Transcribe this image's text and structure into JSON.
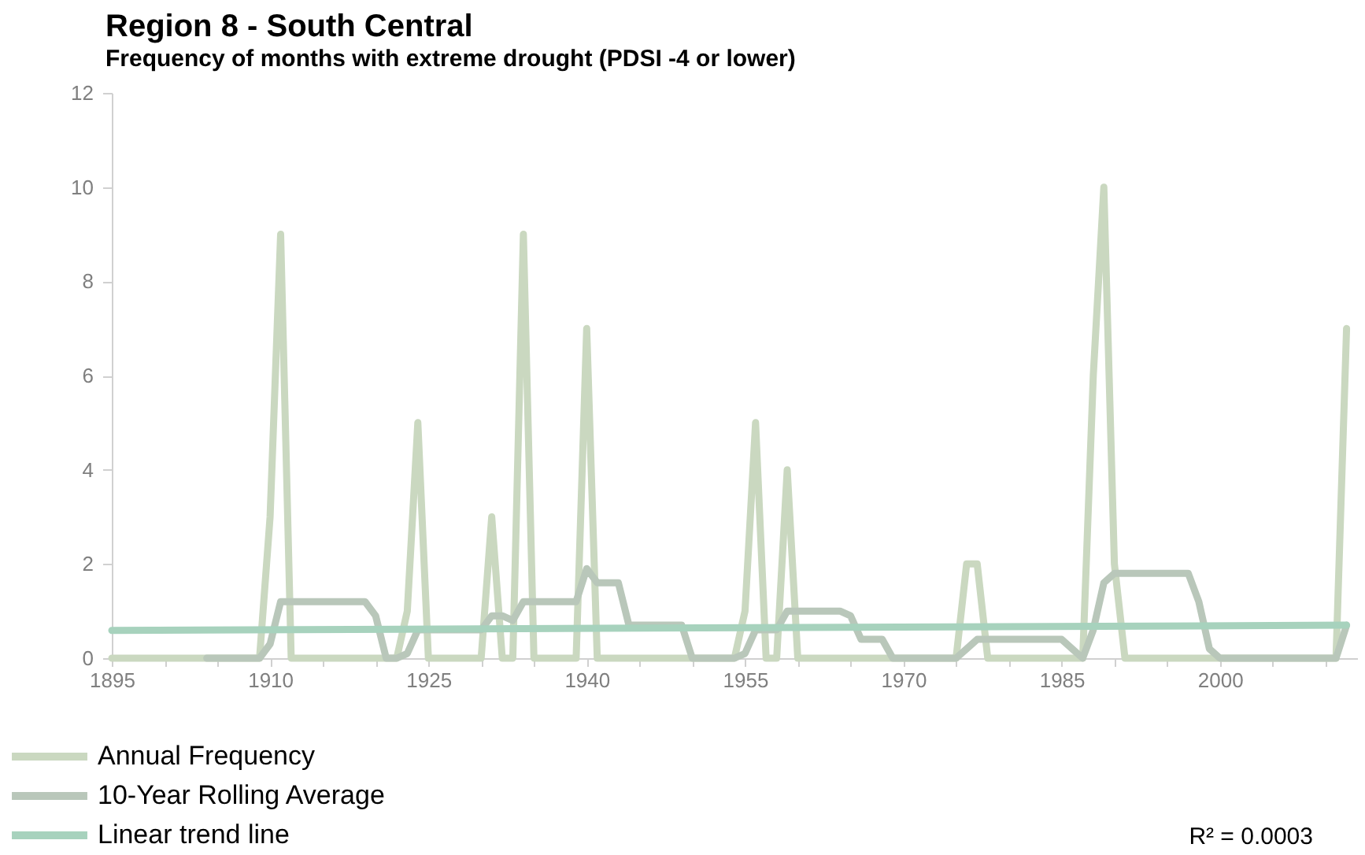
{
  "chart_data": {
    "type": "line",
    "title": "Region 8 - South Central",
    "subtitle": "Frequency of months with extreme drought (PDSI -4 or lower)",
    "x": [
      1895,
      1896,
      1897,
      1898,
      1899,
      1900,
      1901,
      1902,
      1903,
      1904,
      1905,
      1906,
      1907,
      1908,
      1909,
      1910,
      1911,
      1912,
      1913,
      1914,
      1915,
      1916,
      1917,
      1918,
      1919,
      1920,
      1921,
      1922,
      1923,
      1924,
      1925,
      1926,
      1927,
      1928,
      1929,
      1930,
      1931,
      1932,
      1933,
      1934,
      1935,
      1936,
      1937,
      1938,
      1939,
      1940,
      1941,
      1942,
      1943,
      1944,
      1945,
      1946,
      1947,
      1948,
      1949,
      1950,
      1951,
      1952,
      1953,
      1954,
      1955,
      1956,
      1957,
      1958,
      1959,
      1960,
      1961,
      1962,
      1963,
      1964,
      1965,
      1966,
      1967,
      1968,
      1969,
      1970,
      1971,
      1972,
      1973,
      1974,
      1975,
      1976,
      1977,
      1978,
      1979,
      1980,
      1981,
      1982,
      1983,
      1984,
      1985,
      1986,
      1987,
      1988,
      1989,
      1990,
      1991,
      1992,
      1993,
      1994,
      1995,
      1996,
      1997,
      1998,
      1999,
      2000,
      2001,
      2002,
      2003,
      2004,
      2005,
      2006,
      2007,
      2008,
      2009,
      2010,
      2011,
      2012
    ],
    "series": [
      {
        "name": "Annual Frequency",
        "color": "#cad8c0",
        "values": [
          0,
          0,
          0,
          0,
          0,
          0,
          0,
          0,
          0,
          0,
          0,
          0,
          0,
          0,
          0,
          3,
          9,
          0,
          0,
          0,
          0,
          0,
          0,
          0,
          0,
          0,
          0,
          0,
          1,
          5,
          0,
          0,
          0,
          0,
          0,
          0,
          3,
          0,
          0,
          9,
          0,
          0,
          0,
          0,
          0,
          7,
          0,
          0,
          0,
          0,
          0,
          0,
          0,
          0,
          0,
          0,
          0,
          0,
          0,
          0,
          1,
          5,
          0,
          0,
          4,
          0,
          0,
          0,
          0,
          0,
          0,
          0,
          0,
          0,
          0,
          0,
          0,
          0,
          0,
          0,
          0,
          2,
          2,
          0,
          0,
          0,
          0,
          0,
          0,
          0,
          0,
          0,
          0,
          6,
          10,
          2,
          0,
          0,
          0,
          0,
          0,
          0,
          0,
          0,
          0,
          0,
          0,
          0,
          0,
          0,
          0,
          0,
          0,
          0,
          0,
          0,
          0,
          7
        ]
      },
      {
        "name": "10-Year Rolling Average",
        "color": "#b9c7ba",
        "x": [
          1904,
          1905,
          1906,
          1907,
          1908,
          1909,
          1910,
          1911,
          1912,
          1913,
          1914,
          1915,
          1916,
          1917,
          1918,
          1919,
          1920,
          1921,
          1922,
          1923,
          1924,
          1925,
          1926,
          1927,
          1928,
          1929,
          1930,
          1931,
          1932,
          1933,
          1934,
          1935,
          1936,
          1937,
          1938,
          1939,
          1940,
          1941,
          1942,
          1943,
          1944,
          1945,
          1946,
          1947,
          1948,
          1949,
          1950,
          1951,
          1952,
          1953,
          1954,
          1955,
          1956,
          1957,
          1958,
          1959,
          1960,
          1961,
          1962,
          1963,
          1964,
          1965,
          1966,
          1967,
          1968,
          1969,
          1970,
          1971,
          1972,
          1973,
          1974,
          1975,
          1976,
          1977,
          1978,
          1979,
          1980,
          1981,
          1982,
          1983,
          1984,
          1985,
          1986,
          1987,
          1988,
          1989,
          1990,
          1991,
          1992,
          1993,
          1994,
          1995,
          1996,
          1997,
          1998,
          1999,
          2000,
          2001,
          2002,
          2003,
          2004,
          2005,
          2006,
          2007,
          2008,
          2009,
          2010,
          2011,
          2012
        ],
        "values": [
          0,
          0,
          0,
          0,
          0,
          0,
          0.3,
          1.2,
          1.2,
          1.2,
          1.2,
          1.2,
          1.2,
          1.2,
          1.2,
          1.2,
          0.9,
          0,
          0,
          0.1,
          0.6,
          0.6,
          0.6,
          0.6,
          0.6,
          0.6,
          0.6,
          0.9,
          0.9,
          0.8,
          1.2,
          1.2,
          1.2,
          1.2,
          1.2,
          1.2,
          1.9,
          1.6,
          1.6,
          1.6,
          0.7,
          0.7,
          0.7,
          0.7,
          0.7,
          0.7,
          0,
          0,
          0,
          0,
          0,
          0.1,
          0.6,
          0.6,
          0.6,
          1.0,
          1.0,
          1.0,
          1.0,
          1.0,
          1.0,
          0.9,
          0.4,
          0.4,
          0.4,
          0,
          0,
          0,
          0,
          0,
          0,
          0,
          0.2,
          0.4,
          0.4,
          0.4,
          0.4,
          0.4,
          0.4,
          0.4,
          0.4,
          0.4,
          0.2,
          0,
          0.6,
          1.6,
          1.8,
          1.8,
          1.8,
          1.8,
          1.8,
          1.8,
          1.8,
          1.8,
          1.2,
          0.2,
          0,
          0,
          0,
          0,
          0,
          0,
          0,
          0,
          0,
          0,
          0,
          0,
          0.7
        ]
      },
      {
        "name": "Linear trend line",
        "color": "#a7d2bd",
        "x": [
          1895,
          2012
        ],
        "values": [
          0.59,
          0.7
        ]
      }
    ],
    "xlim": [
      1895,
      2013
    ],
    "xticks": [
      1895,
      {
        "value": 1900,
        "label": null
      },
      {
        "value": 1905,
        "label": null
      },
      1910,
      {
        "value": 1915,
        "label": null
      },
      {
        "value": 1920,
        "label": null
      },
      1925,
      {
        "value": 1930,
        "label": null
      },
      {
        "value": 1935,
        "label": null
      },
      1940,
      {
        "value": 1945,
        "label": null
      },
      {
        "value": 1950,
        "label": null
      },
      1955,
      {
        "value": 1960,
        "label": null
      },
      {
        "value": 1965,
        "label": null
      },
      1970,
      {
        "value": 1975,
        "label": null
      },
      {
        "value": 1980,
        "label": null
      },
      1985,
      {
        "value": 1990,
        "label": null
      },
      {
        "value": 1995,
        "label": null
      },
      2000,
      {
        "value": 2005,
        "label": null
      },
      {
        "value": 2010,
        "label": null
      }
    ],
    "ylim": [
      0,
      12
    ],
    "yticks": [
      0,
      2,
      4,
      6,
      8,
      10,
      12
    ],
    "grid": false,
    "legend": "bottom left",
    "marker": "none",
    "line_style": "solid",
    "annotations": [
      "R² = 0.0003"
    ]
  }
}
